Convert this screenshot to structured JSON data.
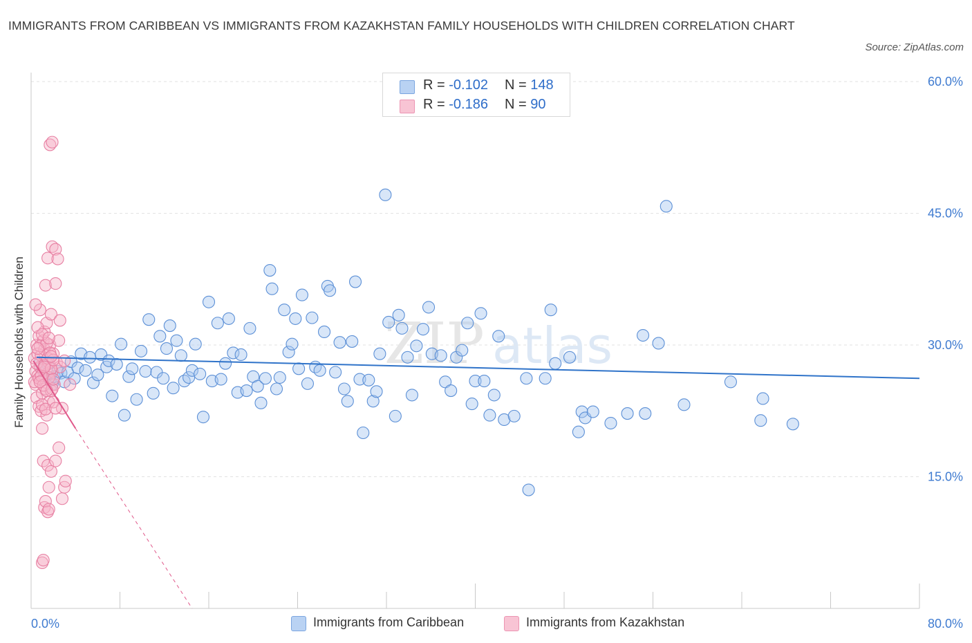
{
  "title": "IMMIGRANTS FROM CARIBBEAN VS IMMIGRANTS FROM KAZAKHSTAN FAMILY HOUSEHOLDS WITH CHILDREN CORRELATION CHART",
  "source": "Source: ZipAtlas.com",
  "watermark": {
    "zip": "ZIP",
    "atlas": "atlas"
  },
  "colors": {
    "blue_fill": "#a9c7ef",
    "blue_stroke": "#5b8fd6",
    "blue_line": "#2f73c9",
    "pink_fill": "#f6b6c9",
    "pink_stroke": "#e77fa2",
    "pink_line": "#e0588a",
    "grid": "#e2e2e2",
    "axis_text": "#3f7bd0"
  },
  "legend": {
    "rows": [
      {
        "r_label": "R =",
        "r_value": "-0.102",
        "n_label": "N =",
        "n_value": "148"
      },
      {
        "r_label": "R =",
        "r_value": "-0.186",
        "n_label": "N =",
        "n_value": "90"
      }
    ],
    "bottom": [
      "Immigrants from Caribbean",
      "Immigrants from Kazakhstan"
    ]
  },
  "chart_data": {
    "type": "scatter",
    "xlabel": "",
    "ylabel": "Family Households with Children",
    "xlim": [
      0,
      80
    ],
    "ylim": [
      0,
      60
    ],
    "x_tick_labels": [
      "0.0%",
      "80.0%"
    ],
    "y_tick_labels": [
      "15.0%",
      "30.0%",
      "45.0%",
      "60.0%"
    ],
    "y_ticks": [
      15,
      30,
      45,
      60
    ],
    "x_minor_ticks": [
      0,
      8,
      16,
      24,
      32,
      40,
      48,
      56,
      64,
      72,
      80
    ],
    "grid": true,
    "legend_position": "top-center",
    "series": [
      {
        "name": "Immigrants from Caribbean",
        "trend": {
          "x": [
            0.5,
            80
          ],
          "y": [
            28.6,
            26.2
          ]
        },
        "points": [
          [
            0.8,
            28.0
          ],
          [
            1.0,
            27.2
          ],
          [
            1.2,
            26.5
          ],
          [
            1.5,
            27.8
          ],
          [
            1.7,
            26.0
          ],
          [
            1.9,
            25.5
          ],
          [
            2.1,
            26.4
          ],
          [
            2.4,
            27.0
          ],
          [
            2.7,
            26.8
          ],
          [
            3.0,
            25.8
          ],
          [
            3.3,
            26.9
          ],
          [
            3.6,
            28.1
          ],
          [
            3.9,
            26.2
          ],
          [
            4.2,
            27.4
          ],
          [
            4.5,
            29.0
          ],
          [
            4.9,
            27.1
          ],
          [
            5.3,
            28.6
          ],
          [
            5.6,
            25.7
          ],
          [
            6.0,
            26.6
          ],
          [
            6.3,
            28.9
          ],
          [
            6.8,
            27.5
          ],
          [
            7.0,
            28.2
          ],
          [
            7.3,
            24.2
          ],
          [
            7.7,
            27.8
          ],
          [
            8.1,
            30.1
          ],
          [
            8.4,
            22.0
          ],
          [
            8.8,
            26.4
          ],
          [
            9.1,
            27.3
          ],
          [
            9.5,
            23.8
          ],
          [
            9.9,
            29.3
          ],
          [
            10.3,
            27.0
          ],
          [
            10.6,
            32.9
          ],
          [
            11.0,
            24.5
          ],
          [
            11.3,
            26.9
          ],
          [
            11.6,
            31.0
          ],
          [
            11.9,
            26.2
          ],
          [
            12.2,
            29.6
          ],
          [
            12.5,
            32.2
          ],
          [
            12.8,
            25.1
          ],
          [
            13.1,
            30.5
          ],
          [
            13.5,
            28.8
          ],
          [
            13.8,
            25.9
          ],
          [
            14.2,
            26.3
          ],
          [
            14.5,
            27.1
          ],
          [
            14.8,
            30.1
          ],
          [
            15.2,
            26.7
          ],
          [
            15.5,
            21.8
          ],
          [
            16.0,
            34.9
          ],
          [
            16.3,
            25.9
          ],
          [
            16.8,
            32.5
          ],
          [
            17.1,
            26.1
          ],
          [
            17.5,
            27.9
          ],
          [
            17.8,
            33.0
          ],
          [
            18.2,
            29.1
          ],
          [
            18.6,
            24.6
          ],
          [
            18.9,
            28.9
          ],
          [
            19.4,
            24.8
          ],
          [
            19.7,
            31.9
          ],
          [
            20.0,
            26.4
          ],
          [
            20.4,
            25.3
          ],
          [
            20.7,
            23.4
          ],
          [
            21.1,
            26.2
          ],
          [
            21.5,
            38.5
          ],
          [
            21.7,
            36.4
          ],
          [
            22.1,
            25.0
          ],
          [
            22.4,
            26.3
          ],
          [
            22.8,
            34.0
          ],
          [
            23.2,
            29.2
          ],
          [
            23.5,
            30.1
          ],
          [
            23.8,
            33.0
          ],
          [
            24.1,
            27.3
          ],
          [
            24.4,
            35.7
          ],
          [
            24.9,
            25.6
          ],
          [
            25.3,
            33.1
          ],
          [
            25.6,
            27.5
          ],
          [
            26.0,
            27.1
          ],
          [
            26.4,
            31.5
          ],
          [
            26.7,
            36.7
          ],
          [
            26.9,
            36.2
          ],
          [
            27.4,
            26.9
          ],
          [
            27.8,
            30.3
          ],
          [
            28.2,
            25.0
          ],
          [
            28.5,
            23.6
          ],
          [
            28.9,
            30.4
          ],
          [
            29.2,
            37.2
          ],
          [
            29.6,
            26.1
          ],
          [
            29.9,
            20.0
          ],
          [
            30.4,
            26.0
          ],
          [
            30.8,
            23.6
          ],
          [
            31.1,
            24.7
          ],
          [
            31.4,
            29.0
          ],
          [
            31.9,
            47.1
          ],
          [
            32.2,
            32.6
          ],
          [
            32.8,
            21.9
          ],
          [
            33.1,
            33.4
          ],
          [
            33.4,
            31.9
          ],
          [
            33.9,
            28.6
          ],
          [
            34.3,
            24.3
          ],
          [
            34.7,
            29.9
          ],
          [
            35.3,
            31.8
          ],
          [
            35.8,
            34.3
          ],
          [
            36.1,
            29.0
          ],
          [
            36.9,
            28.8
          ],
          [
            37.3,
            25.8
          ],
          [
            37.8,
            24.8
          ],
          [
            38.3,
            28.6
          ],
          [
            38.8,
            29.4
          ],
          [
            39.3,
            32.5
          ],
          [
            39.7,
            23.3
          ],
          [
            40.0,
            25.9
          ],
          [
            40.5,
            33.6
          ],
          [
            40.8,
            25.9
          ],
          [
            41.3,
            22.0
          ],
          [
            41.7,
            24.3
          ],
          [
            42.1,
            31.0
          ],
          [
            42.6,
            21.5
          ],
          [
            43.5,
            21.9
          ],
          [
            44.6,
            26.2
          ],
          [
            44.8,
            13.5
          ],
          [
            46.3,
            26.2
          ],
          [
            46.8,
            34.0
          ],
          [
            47.2,
            27.9
          ],
          [
            48.5,
            28.6
          ],
          [
            49.3,
            20.1
          ],
          [
            49.6,
            22.4
          ],
          [
            49.9,
            21.7
          ],
          [
            50.6,
            22.4
          ],
          [
            52.2,
            21.1
          ],
          [
            53.7,
            22.2
          ],
          [
            55.1,
            31.1
          ],
          [
            55.3,
            22.2
          ],
          [
            56.5,
            30.2
          ],
          [
            57.2,
            45.8
          ],
          [
            58.8,
            23.2
          ],
          [
            63.0,
            25.8
          ],
          [
            65.7,
            21.4
          ],
          [
            65.9,
            23.9
          ],
          [
            68.6,
            21.0
          ]
        ]
      },
      {
        "name": "Immigrants from Kazakhstan",
        "trend": {
          "x": [
            0.2,
            4.0
          ],
          "y": [
            28.2,
            20.5
          ]
        },
        "trend_dashed": {
          "x": [
            4.0,
            14.5
          ],
          "y": [
            20.5,
            0.0
          ]
        },
        "points": [
          [
            0.3,
            28.5
          ],
          [
            0.4,
            27.0
          ],
          [
            0.4,
            25.5
          ],
          [
            0.5,
            30.0
          ],
          [
            0.5,
            24.0
          ],
          [
            0.6,
            29.0
          ],
          [
            0.6,
            26.5
          ],
          [
            0.7,
            31.0
          ],
          [
            0.7,
            23.0
          ],
          [
            0.8,
            27.5
          ],
          [
            0.8,
            34.0
          ],
          [
            0.9,
            22.5
          ],
          [
            0.9,
            28.8
          ],
          [
            1.0,
            26.0
          ],
          [
            1.0,
            24.5
          ],
          [
            1.1,
            30.5
          ],
          [
            1.1,
            27.2
          ],
          [
            1.2,
            29.5
          ],
          [
            1.2,
            31.5
          ],
          [
            1.3,
            25.0
          ],
          [
            1.3,
            36.8
          ],
          [
            1.4,
            32.5
          ],
          [
            1.4,
            22.0
          ],
          [
            1.5,
            26.8
          ],
          [
            1.5,
            39.9
          ],
          [
            1.6,
            28.0
          ],
          [
            1.6,
            23.5
          ],
          [
            1.7,
            52.8
          ],
          [
            1.7,
            30.0
          ],
          [
            1.8,
            24.8
          ],
          [
            1.8,
            33.5
          ],
          [
            1.9,
            27.0
          ],
          [
            1.9,
            41.2
          ],
          [
            2.0,
            23.5
          ],
          [
            2.0,
            29.0
          ],
          [
            2.1,
            25.5
          ],
          [
            2.2,
            40.9
          ],
          [
            2.2,
            37.0
          ],
          [
            2.3,
            28.0
          ],
          [
            2.4,
            39.8
          ],
          [
            2.5,
            30.5
          ],
          [
            2.6,
            27.5
          ],
          [
            0.3,
            25.8
          ],
          [
            0.5,
            27.9
          ],
          [
            0.6,
            32.0
          ],
          [
            0.7,
            26.2
          ],
          [
            0.8,
            29.9
          ],
          [
            0.9,
            26.5
          ],
          [
            1.0,
            23.2
          ],
          [
            1.1,
            25.4
          ],
          [
            1.2,
            27.7
          ],
          [
            1.3,
            22.7
          ],
          [
            1.4,
            30.2
          ],
          [
            1.5,
            28.5
          ],
          [
            1.6,
            26.3
          ],
          [
            1.7,
            29.1
          ],
          [
            1.8,
            27.3
          ],
          [
            1.9,
            25.0
          ],
          [
            2.0,
            28.3
          ],
          [
            0.4,
            34.6
          ],
          [
            0.6,
            29.6
          ],
          [
            0.8,
            25.8
          ],
          [
            1.0,
            31.2
          ],
          [
            1.2,
            27.5
          ],
          [
            1.4,
            24.8
          ],
          [
            1.6,
            30.8
          ],
          [
            1.8,
            28.7
          ],
          [
            2.0,
            26.1
          ],
          [
            1.0,
            20.5
          ],
          [
            1.1,
            16.8
          ],
          [
            1.2,
            11.5
          ],
          [
            1.3,
            12.2
          ],
          [
            1.5,
            16.3
          ],
          [
            1.6,
            13.8
          ],
          [
            1.8,
            15.6
          ],
          [
            2.2,
            16.8
          ],
          [
            2.5,
            18.3
          ],
          [
            2.8,
            12.5
          ],
          [
            3.0,
            13.8
          ],
          [
            3.1,
            14.5
          ],
          [
            1.0,
            5.2
          ],
          [
            1.1,
            5.5
          ],
          [
            1.5,
            11.0
          ],
          [
            1.6,
            11.3
          ],
          [
            2.6,
            32.8
          ],
          [
            2.8,
            22.8
          ],
          [
            3.0,
            28.2
          ],
          [
            1.9,
            53.1
          ],
          [
            2.2,
            22.8
          ],
          [
            3.5,
            25.5
          ]
        ]
      }
    ]
  }
}
